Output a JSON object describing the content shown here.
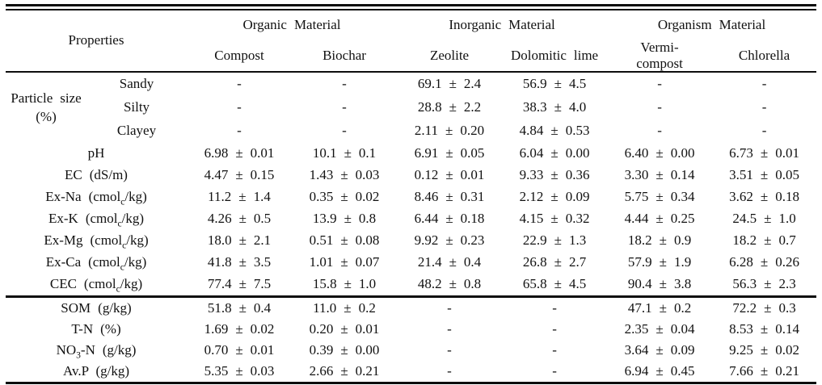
{
  "table": {
    "properties_header": "Properties",
    "col_groups": [
      {
        "label": "Organic Material",
        "cols": [
          "Compost",
          "Biochar"
        ]
      },
      {
        "label": "Inorganic Material",
        "cols": [
          "Zeolite",
          "Dolomitic lime"
        ]
      },
      {
        "label": "Organism Material",
        "cols": [
          "Vermi-\ncompost",
          "Chlorella"
        ]
      }
    ],
    "rows": [
      {
        "group": "Particle size\n(%)",
        "group_rows": 3,
        "sub": "Sandy",
        "values": [
          "-",
          "-",
          "69.1 ± 2.4",
          "56.9 ± 4.5",
          "-",
          "-"
        ]
      },
      {
        "sub": "Silty",
        "values": [
          "-",
          "-",
          "28.8 ± 2.2",
          "38.3 ± 4.0",
          "-",
          "-"
        ]
      },
      {
        "sub": "Clayey",
        "values": [
          "-",
          "-",
          "2.11 ± 0.20",
          "4.84 ± 0.53",
          "-",
          "-"
        ]
      },
      {
        "label": "pH",
        "values": [
          "6.98 ± 0.01",
          "10.1 ± 0.1",
          "6.91 ± 0.05",
          "6.04 ± 0.00",
          "6.40 ± 0.00",
          "6.73 ± 0.01"
        ]
      },
      {
        "label": "EC (dS/m)",
        "values": [
          "4.47 ± 0.15",
          "1.43 ± 0.03",
          "0.12 ± 0.01",
          "9.33 ± 0.36",
          "3.30 ± 0.14",
          "3.51 ± 0.05"
        ]
      },
      {
        "label": "Ex-Na (cmol_{c}/kg)",
        "values": [
          "11.2 ± 1.4",
          "0.35 ± 0.02",
          "8.46 ± 0.31",
          "2.12 ± 0.09",
          "5.75 ± 0.34",
          "3.62 ± 0.18"
        ]
      },
      {
        "label": "Ex-K (cmol_{c}/kg)",
        "values": [
          "4.26 ± 0.5",
          "13.9 ± 0.8",
          "6.44 ± 0.18",
          "4.15 ± 0.32",
          "4.44 ± 0.25",
          "24.5 ± 1.0"
        ]
      },
      {
        "label": "Ex-Mg (cmol_{c}/kg)",
        "values": [
          "18.0 ± 2.1",
          "0.51 ± 0.08",
          "9.92 ± 0.23",
          "22.9 ± 1.3",
          "18.2 ± 0.9",
          "18.2 ± 0.7"
        ]
      },
      {
        "label": "Ex-Ca (cmol_{c}/kg)",
        "values": [
          "41.8 ± 3.5",
          "1.01 ± 0.07",
          "21.4 ± 0.4",
          "26.8 ± 2.7",
          "57.9 ± 1.9",
          "6.28 ± 0.26"
        ]
      },
      {
        "label": "CEC (cmol_{c}/kg)",
        "section_end": true,
        "values": [
          "77.4 ± 7.5",
          "15.8 ± 1.0",
          "48.2 ± 0.8",
          "65.8 ± 4.5",
          "90.4 ± 3.8",
          "56.3 ± 2.3"
        ]
      },
      {
        "label": "SOM (g/kg)",
        "values": [
          "51.8 ± 0.4",
          "11.0 ± 0.2",
          "-",
          "-",
          "47.1 ± 0.2",
          "72.2 ± 0.3"
        ]
      },
      {
        "label": "T-N (%)",
        "values": [
          "1.69 ± 0.02",
          "0.20 ± 0.01",
          "-",
          "-",
          "2.35 ± 0.04",
          "8.53 ± 0.14"
        ]
      },
      {
        "label": "NO_{3}-N (g/kg)",
        "values": [
          "0.70 ± 0.01",
          "0.39 ± 0.00",
          "-",
          "-",
          "3.64 ± 0.09",
          "9.25 ± 0.02"
        ]
      },
      {
        "label": "Av.P (g/kg)",
        "values": [
          "5.35 ± 0.03",
          "2.66 ± 0.21",
          "-",
          "-",
          "6.94 ± 0.45",
          "7.66 ± 0.21"
        ]
      }
    ]
  }
}
